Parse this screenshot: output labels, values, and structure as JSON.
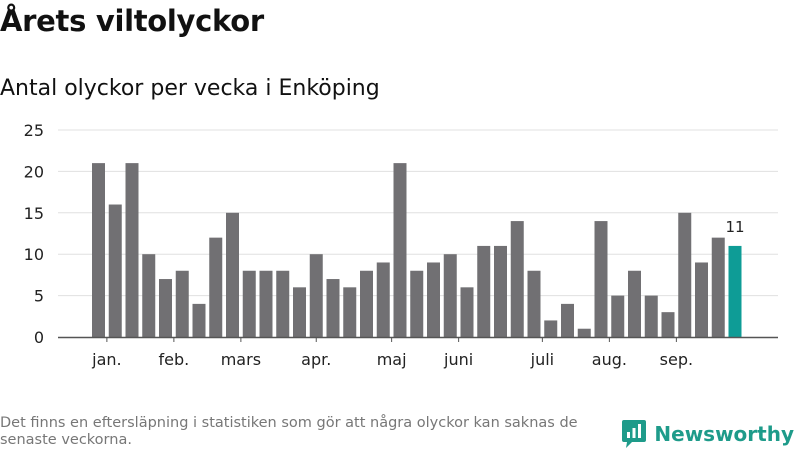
{
  "page": {
    "title": "Årets viltolyckor",
    "subtitle": "Antal olyckor per vecka i Enköping",
    "footnote": "Det finns en eftersläpning i statistiken som gör att några olyckor kan saknas de senaste veckorna.",
    "brand": "Newsworthy"
  },
  "colors": {
    "bar": "#717073",
    "highlight": "#0e9c96",
    "grid": "#e0e0e0",
    "axis": "#555555",
    "brand": "#1e9b8a"
  },
  "chart_data": {
    "type": "bar",
    "title": "Antal olyckor per vecka i Enköping",
    "ylim": [
      0,
      25
    ],
    "y_ticks": [
      0,
      5,
      10,
      15,
      20,
      25
    ],
    "grid": true,
    "values": [
      21,
      16,
      21,
      10,
      7,
      8,
      4,
      12,
      15,
      8,
      8,
      8,
      6,
      10,
      7,
      6,
      8,
      9,
      21,
      8,
      9,
      10,
      6,
      11,
      11,
      14,
      8,
      2,
      4,
      1,
      14,
      5,
      8,
      5,
      3,
      15,
      9,
      12,
      11
    ],
    "highlight_index": 38,
    "highlight_label": "11",
    "month_labels": [
      {
        "label": "jan.",
        "index": 0.5
      },
      {
        "label": "feb.",
        "index": 4.5
      },
      {
        "label": "mars",
        "index": 8.5
      },
      {
        "label": "apr.",
        "index": 13
      },
      {
        "label": "maj",
        "index": 17.5
      },
      {
        "label": "juni",
        "index": 21.5
      },
      {
        "label": "juli",
        "index": 26.5
      },
      {
        "label": "aug.",
        "index": 30.5
      },
      {
        "label": "sep.",
        "index": 34.5
      }
    ]
  }
}
